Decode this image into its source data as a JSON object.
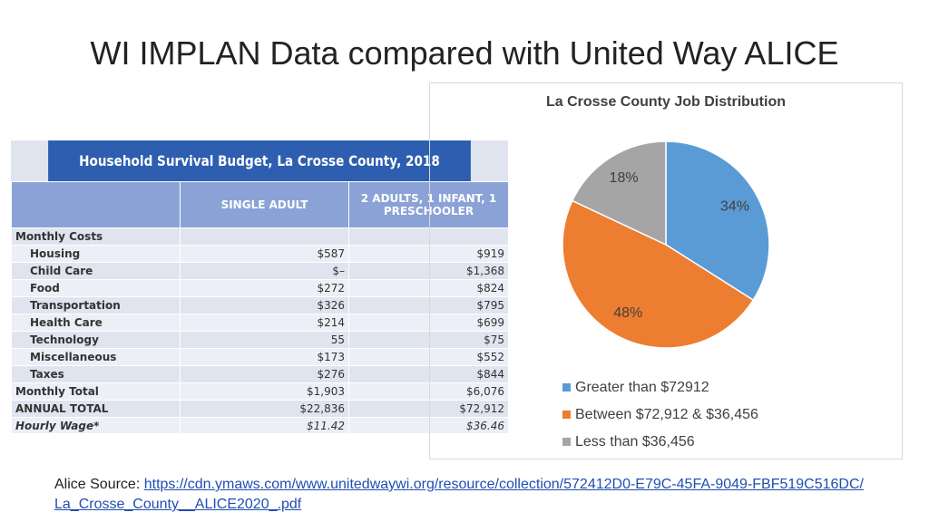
{
  "title": "WI IMPLAN Data compared with United Way ALICE",
  "table": {
    "title": "Household Survival Budget, La Crosse County, 2018",
    "headers": [
      "SINGLE ADULT",
      "2 ADULTS, 1 INFANT, 1 PRESCHOOLER"
    ],
    "rows": [
      [
        "Monthly Costs"
      ],
      [
        "Housing",
        "$587",
        "$919"
      ],
      [
        "Child Care",
        "$–",
        "$1,368"
      ],
      [
        "Food",
        "$272",
        "$824"
      ],
      [
        "Transportation",
        "$326",
        "$795"
      ],
      [
        "Health Care",
        "$214",
        "$699"
      ],
      [
        "Technology",
        "55",
        "$75"
      ],
      [
        "Miscellaneous",
        "$173",
        "$552"
      ],
      [
        "Taxes",
        "$276",
        "$844"
      ],
      [
        "Monthly Total",
        "$1,903",
        "$6,076"
      ],
      [
        "ANNUAL TOTAL",
        "$22,836",
        "$72,912"
      ],
      [
        "Hourly Wage*",
        "$11.42",
        "$36.46"
      ]
    ]
  },
  "chart_data": {
    "type": "pie",
    "title": "La Crosse County Job Distribution",
    "categories": [
      "Greater than $72912",
      "Between $72,912 & $36,456",
      "Less than $36,456"
    ],
    "values": [
      34,
      48,
      18
    ],
    "value_labels": [
      "34%",
      "48%",
      "18%"
    ],
    "colors": [
      "#5b9bd5",
      "#ed7d31",
      "#a5a5a5"
    ],
    "legend": "bottom"
  },
  "source": {
    "label": "Alice Source:",
    "link": "https://cdn.ymaws.com/www.unitedwaywi.org/resource/collection/572412D0-E79C-45FA-9049-FBF519C516DC/La_Crosse_County__ALICE2020_.pdf"
  }
}
